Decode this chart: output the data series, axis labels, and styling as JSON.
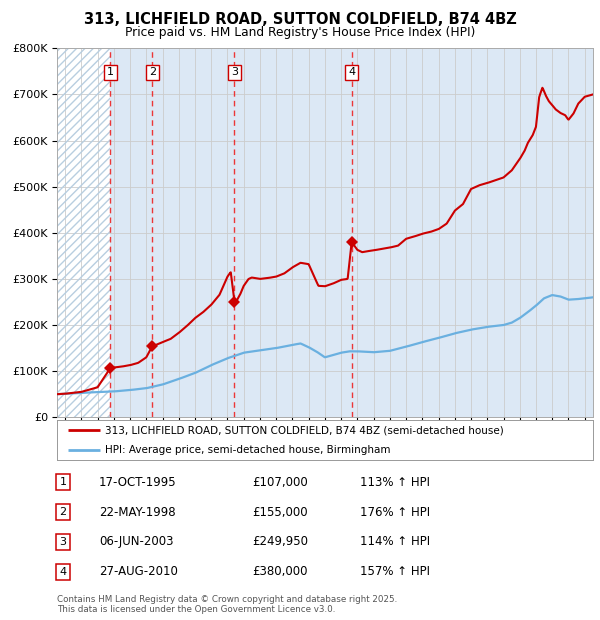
{
  "title": "313, LICHFIELD ROAD, SUTTON COLDFIELD, B74 4BZ",
  "subtitle": "Price paid vs. HM Land Registry's House Price Index (HPI)",
  "ylim": [
    0,
    800000
  ],
  "yticks": [
    0,
    100000,
    200000,
    300000,
    400000,
    500000,
    600000,
    700000,
    800000
  ],
  "hpi_color": "#6ab0e0",
  "price_color": "#cc0000",
  "background_color": "#dce8f5",
  "hatch_color": "#b0c8e0",
  "grid_color": "#cccccc",
  "sale_dates": [
    1995.79,
    1998.38,
    2003.43,
    2010.65
  ],
  "sale_prices": [
    107000,
    155000,
    249950,
    380000
  ],
  "sale_labels": [
    "1",
    "2",
    "3",
    "4"
  ],
  "dashed_line_color": "#ee2222",
  "legend_line1": "313, LICHFIELD ROAD, SUTTON COLDFIELD, B74 4BZ (semi-detached house)",
  "legend_line2": "HPI: Average price, semi-detached house, Birmingham",
  "table_data": [
    [
      "1",
      "17-OCT-1995",
      "£107,000",
      "113% ↑ HPI"
    ],
    [
      "2",
      "22-MAY-1998",
      "£155,000",
      "176% ↑ HPI"
    ],
    [
      "3",
      "06-JUN-2003",
      "£249,950",
      "114% ↑ HPI"
    ],
    [
      "4",
      "27-AUG-2010",
      "£380,000",
      "157% ↑ HPI"
    ]
  ],
  "footnote1": "Contains HM Land Registry data © Crown copyright and database right 2025.",
  "footnote2": "This data is licensed under the Open Government Licence v3.0.",
  "xlim_start": 1992.5,
  "xlim_end": 2025.5,
  "hpi_anchors": [
    [
      1992.5,
      50000
    ],
    [
      1993.0,
      51000
    ],
    [
      1994.0,
      53000
    ],
    [
      1995.0,
      54500
    ],
    [
      1996.0,
      56000
    ],
    [
      1997.0,
      59000
    ],
    [
      1998.0,
      63000
    ],
    [
      1999.0,
      71000
    ],
    [
      2000.0,
      83000
    ],
    [
      2001.0,
      96000
    ],
    [
      2002.0,
      113000
    ],
    [
      2003.0,
      128000
    ],
    [
      2004.0,
      140000
    ],
    [
      2005.0,
      145000
    ],
    [
      2006.0,
      150000
    ],
    [
      2007.0,
      157000
    ],
    [
      2007.5,
      160000
    ],
    [
      2008.0,
      152000
    ],
    [
      2008.5,
      142000
    ],
    [
      2009.0,
      130000
    ],
    [
      2009.5,
      135000
    ],
    [
      2010.0,
      140000
    ],
    [
      2010.5,
      143000
    ],
    [
      2011.0,
      143000
    ],
    [
      2012.0,
      141000
    ],
    [
      2013.0,
      144000
    ],
    [
      2014.0,
      153000
    ],
    [
      2015.0,
      163000
    ],
    [
      2016.0,
      172000
    ],
    [
      2017.0,
      182000
    ],
    [
      2018.0,
      190000
    ],
    [
      2019.0,
      196000
    ],
    [
      2020.0,
      200000
    ],
    [
      2020.5,
      205000
    ],
    [
      2021.0,
      215000
    ],
    [
      2021.5,
      228000
    ],
    [
      2022.0,
      242000
    ],
    [
      2022.5,
      258000
    ],
    [
      2023.0,
      265000
    ],
    [
      2023.5,
      262000
    ],
    [
      2024.0,
      255000
    ],
    [
      2024.5,
      256000
    ],
    [
      2025.0,
      258000
    ],
    [
      2025.5,
      260000
    ]
  ],
  "price_anchors": [
    [
      1992.5,
      50000
    ],
    [
      1993.0,
      51000
    ],
    [
      1994.0,
      55000
    ],
    [
      1995.0,
      65000
    ],
    [
      1995.79,
      107000
    ],
    [
      1996.0,
      108000
    ],
    [
      1996.5,
      110000
    ],
    [
      1997.0,
      113000
    ],
    [
      1997.5,
      118000
    ],
    [
      1998.0,
      130000
    ],
    [
      1998.38,
      155000
    ],
    [
      1998.6,
      157000
    ],
    [
      1999.0,
      163000
    ],
    [
      1999.5,
      170000
    ],
    [
      2000.0,
      183000
    ],
    [
      2000.5,
      198000
    ],
    [
      2001.0,
      215000
    ],
    [
      2001.5,
      228000
    ],
    [
      2002.0,
      244000
    ],
    [
      2002.5,
      265000
    ],
    [
      2003.0,
      305000
    ],
    [
      2003.2,
      315000
    ],
    [
      2003.43,
      249950
    ],
    [
      2003.6,
      255000
    ],
    [
      2003.8,
      268000
    ],
    [
      2004.0,
      285000
    ],
    [
      2004.3,
      300000
    ],
    [
      2004.5,
      303000
    ],
    [
      2005.0,
      300000
    ],
    [
      2005.5,
      302000
    ],
    [
      2006.0,
      305000
    ],
    [
      2006.5,
      312000
    ],
    [
      2007.0,
      325000
    ],
    [
      2007.5,
      335000
    ],
    [
      2008.0,
      332000
    ],
    [
      2008.3,
      308000
    ],
    [
      2008.6,
      285000
    ],
    [
      2009.0,
      284000
    ],
    [
      2009.5,
      290000
    ],
    [
      2010.0,
      298000
    ],
    [
      2010.4,
      300000
    ],
    [
      2010.65,
      380000
    ],
    [
      2011.0,
      363000
    ],
    [
      2011.3,
      358000
    ],
    [
      2011.6,
      360000
    ],
    [
      2012.0,
      362000
    ],
    [
      2012.5,
      365000
    ],
    [
      2013.0,
      368000
    ],
    [
      2013.5,
      372000
    ],
    [
      2014.0,
      387000
    ],
    [
      2014.5,
      392000
    ],
    [
      2015.0,
      398000
    ],
    [
      2015.5,
      402000
    ],
    [
      2016.0,
      408000
    ],
    [
      2016.5,
      420000
    ],
    [
      2017.0,
      448000
    ],
    [
      2017.5,
      462000
    ],
    [
      2018.0,
      495000
    ],
    [
      2018.5,
      503000
    ],
    [
      2019.0,
      508000
    ],
    [
      2019.5,
      514000
    ],
    [
      2020.0,
      520000
    ],
    [
      2020.5,
      535000
    ],
    [
      2021.0,
      560000
    ],
    [
      2021.3,
      578000
    ],
    [
      2021.5,
      595000
    ],
    [
      2021.8,
      612000
    ],
    [
      2022.0,
      630000
    ],
    [
      2022.2,
      695000
    ],
    [
      2022.4,
      715000
    ],
    [
      2022.6,
      698000
    ],
    [
      2022.8,
      685000
    ],
    [
      2023.0,
      677000
    ],
    [
      2023.2,
      668000
    ],
    [
      2023.5,
      660000
    ],
    [
      2023.8,
      655000
    ],
    [
      2024.0,
      645000
    ],
    [
      2024.3,
      658000
    ],
    [
      2024.6,
      680000
    ],
    [
      2025.0,
      695000
    ],
    [
      2025.5,
      700000
    ]
  ]
}
